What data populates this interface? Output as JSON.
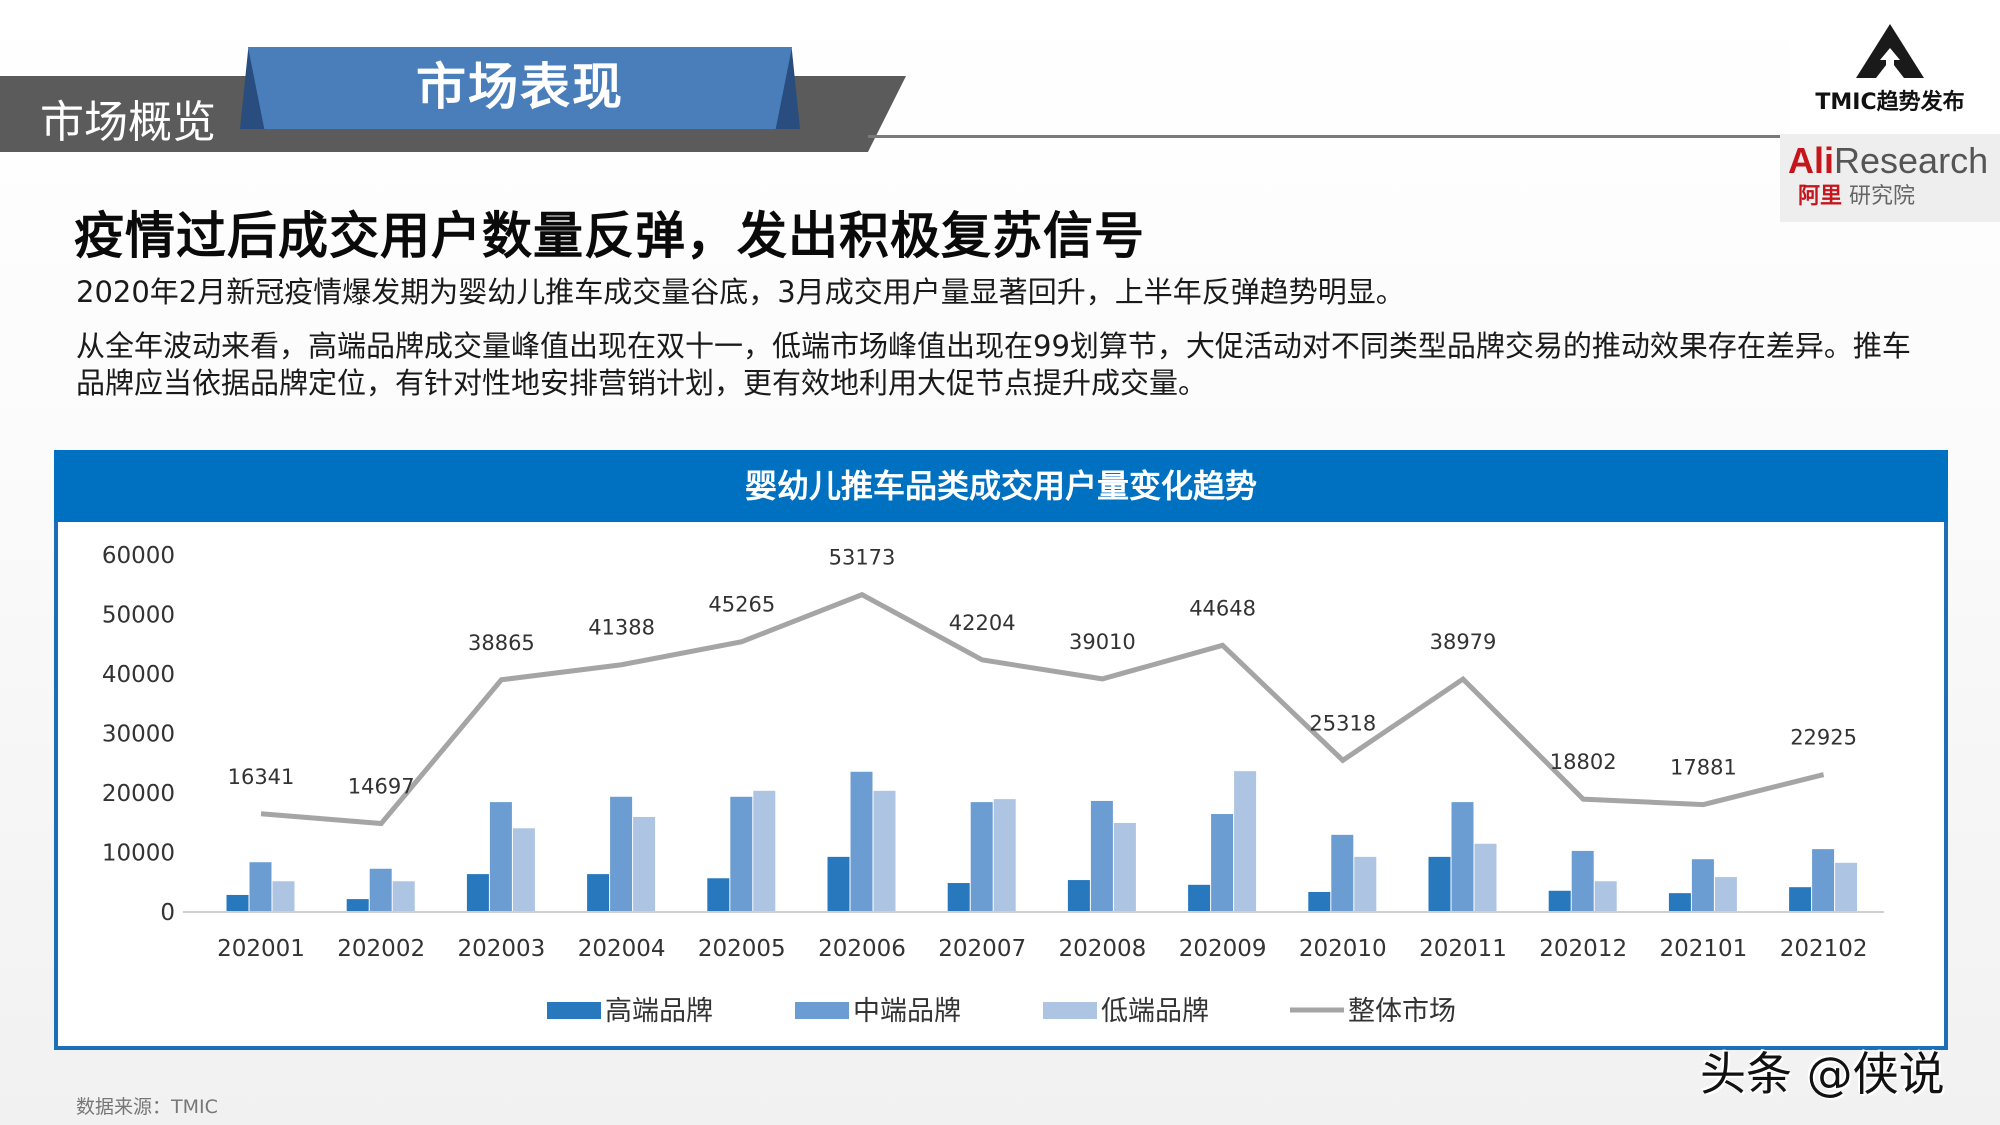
{
  "header": {
    "section_parent": "市场概览",
    "section_current": "市场表现"
  },
  "logos": {
    "tmic": "TMIC趋势发布",
    "ali_brand_red": "Ali",
    "ali_brand_gray": "Research",
    "ali_cn_red": "阿里",
    "ali_cn_gray": "研究院"
  },
  "title": "疫情过后成交用户数量反弹，发出积极复苏信号",
  "paragraphs": [
    "2020年2月新冠疫情爆发期为婴幼儿推车成交量谷底，3月成交用户量显著回升，上半年反弹趋势明显。",
    "从全年波动来看，高端品牌成交量峰值出现在双十一，低端市场峰值出现在99划算节，大促活动对不同类型品牌交易的推动效果存在差异。推车品牌应当依据品牌定位，有针对性地安排营销计划，更有效地利用大促节点提升成交量。"
  ],
  "source": "数据来源：TMIC",
  "watermark": "头条 @侠说",
  "colors": {
    "high": "#2878bd",
    "mid": "#6c9dd2",
    "low": "#adc4e2",
    "line": "#a5a5a5",
    "card_header": "#0070c0"
  },
  "chart_data": {
    "type": "bar",
    "title": "婴幼儿推车品类成交用户量变化趋势",
    "xlabel": "",
    "ylabel": "",
    "ylim": [
      0,
      60000
    ],
    "yticks": [
      "0",
      "10000",
      "20000",
      "30000",
      "40000",
      "50000",
      "60000"
    ],
    "grid": false,
    "legend_position": "bottom",
    "categories": [
      "202001",
      "202002",
      "202003",
      "202004",
      "202005",
      "202006",
      "202007",
      "202008",
      "202009",
      "202010",
      "202011",
      "202012",
      "202101",
      "202102"
    ],
    "series": [
      {
        "name": "高端品牌",
        "type": "bar",
        "values": [
          2700,
          2000,
          6200,
          6200,
          5500,
          9100,
          4700,
          5200,
          4400,
          3200,
          9100,
          3400,
          3000,
          4000
        ]
      },
      {
        "name": "中端品牌",
        "type": "bar",
        "values": [
          8200,
          7100,
          18300,
          19200,
          19200,
          23400,
          18300,
          18500,
          16300,
          12800,
          18300,
          10100,
          8700,
          10400
        ]
      },
      {
        "name": "低端品牌",
        "type": "bar",
        "values": [
          5000,
          5000,
          13900,
          15800,
          20200,
          20200,
          18800,
          14800,
          23500,
          9100,
          11300,
          5000,
          5700,
          8100
        ]
      },
      {
        "name": "整体市场",
        "type": "line",
        "values": [
          16341,
          14697,
          38865,
          41388,
          45265,
          53173,
          42204,
          39010,
          44648,
          25318,
          38979,
          18802,
          17881,
          22925
        ]
      }
    ]
  }
}
